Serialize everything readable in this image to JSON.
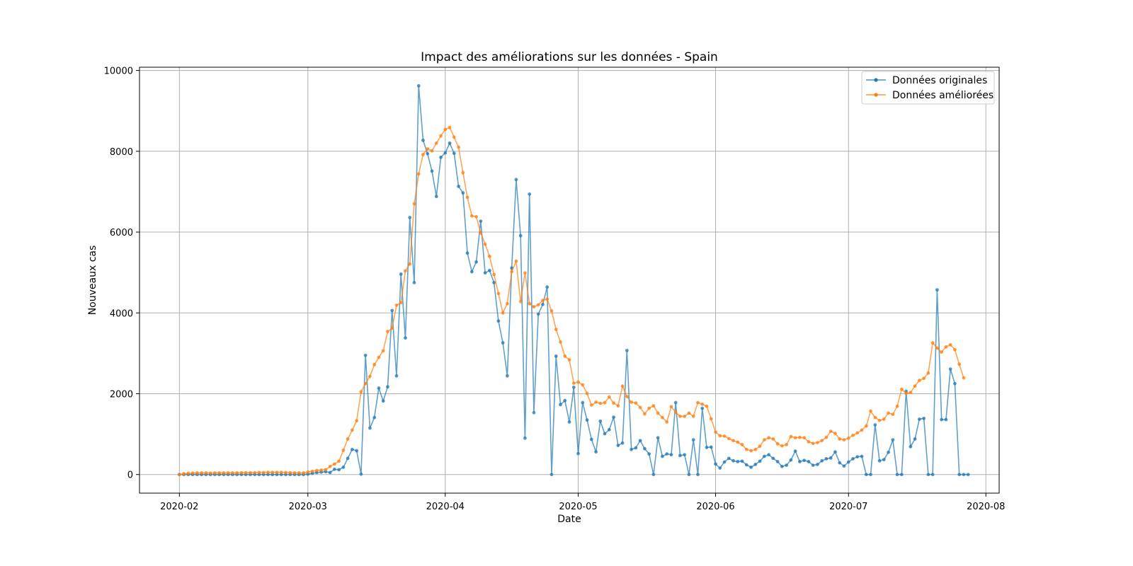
{
  "chart_data": {
    "type": "line",
    "title": "Impact des améliorations sur les données - Spain",
    "xlabel": "Date",
    "ylabel": "Nouveaux cas",
    "x_start": "2020-02-01",
    "xlim": [
      "2020-01-23",
      "2020-08-04"
    ],
    "ylim": [
      -460,
      10080
    ],
    "x_ticks": [
      "2020-02-01",
      "2020-03-01",
      "2020-04-01",
      "2020-05-01",
      "2020-06-01",
      "2020-07-01",
      "2020-08-01"
    ],
    "x_tick_labels": [
      "2020-02",
      "2020-03",
      "2020-04",
      "2020-05",
      "2020-06",
      "2020-07",
      "2020-08"
    ],
    "y_ticks": [
      0,
      2000,
      4000,
      6000,
      8000,
      10000
    ],
    "y_tick_labels": [
      "0",
      "2000",
      "4000",
      "6000",
      "8000",
      "10000"
    ],
    "grid": true,
    "legend_position": "top-right",
    "colors": {
      "original": "#1f77b4",
      "improved": "#ff7f0e"
    },
    "series": [
      {
        "name": "Données originales",
        "values": [
          0,
          0,
          0,
          0,
          0,
          0,
          0,
          0,
          0,
          0,
          0,
          0,
          0,
          0,
          0,
          0,
          0,
          0,
          0,
          0,
          0,
          0,
          0,
          0,
          0,
          0,
          0,
          0,
          0,
          10,
          30,
          50,
          60,
          70,
          50,
          130,
          120,
          180,
          400,
          620,
          590,
          10,
          2950,
          1150,
          1410,
          2140,
          1820,
          2170,
          4060,
          2440,
          4960,
          3380,
          6360,
          4750,
          9620,
          8270,
          7940,
          7510,
          6880,
          7850,
          7960,
          8200,
          7950,
          7130,
          6970,
          5480,
          5020,
          5260,
          6270,
          4990,
          5050,
          4750,
          3800,
          3260,
          2440,
          5110,
          7300,
          5910,
          900,
          6940,
          1530,
          3970,
          4210,
          4640,
          0,
          2930,
          1730,
          1830,
          1300,
          2160,
          520,
          1780,
          1350,
          870,
          560,
          1320,
          1010,
          1110,
          1420,
          720,
          780,
          3070,
          620,
          660,
          840,
          640,
          510,
          0,
          910,
          450,
          510,
          490,
          1780,
          470,
          490,
          0,
          860,
          0,
          1640,
          670,
          680,
          260,
          160,
          310,
          400,
          340,
          320,
          330,
          240,
          180,
          250,
          330,
          450,
          490,
          400,
          320,
          200,
          230,
          360,
          580,
          320,
          350,
          320,
          230,
          250,
          340,
          390,
          410,
          560,
          290,
          210,
          310,
          390,
          440,
          450,
          0,
          0,
          1230,
          340,
          370,
          550,
          860,
          0,
          0,
          2060,
          690,
          880,
          1370,
          1390,
          0,
          0,
          4570,
          1360,
          1360,
          2610,
          2250,
          0,
          0,
          0
        ]
      },
      {
        "name": "Données améliorées",
        "values": [
          0,
          20,
          30,
          35,
          40,
          40,
          40,
          35,
          40,
          40,
          40,
          40,
          40,
          40,
          45,
          45,
          45,
          45,
          50,
          50,
          55,
          55,
          55,
          55,
          50,
          45,
          40,
          40,
          40,
          60,
          80,
          100,
          110,
          120,
          200,
          260,
          330,
          600,
          880,
          1100,
          1330,
          2050,
          2250,
          2430,
          2720,
          2900,
          3060,
          3540,
          3620,
          4190,
          4250,
          5040,
          5210,
          6700,
          7440,
          7920,
          8060,
          8010,
          8200,
          8380,
          8540,
          8590,
          8350,
          8100,
          7470,
          6860,
          6400,
          6380,
          5980,
          5700,
          5400,
          4950,
          4480,
          4000,
          4230,
          5020,
          5280,
          4280,
          4990,
          4230,
          4150,
          4200,
          4310,
          4340,
          4050,
          3590,
          3280,
          2930,
          2840,
          2260,
          2290,
          2220,
          2010,
          1720,
          1790,
          1760,
          1780,
          1920,
          1770,
          1700,
          2190,
          1930,
          1790,
          1770,
          1660,
          1500,
          1640,
          1700,
          1520,
          1410,
          1300,
          1680,
          1540,
          1440,
          1440,
          1520,
          1440,
          1780,
          1740,
          1690,
          1380,
          1050,
          960,
          950,
          890,
          840,
          800,
          740,
          620,
          590,
          620,
          700,
          860,
          910,
          880,
          760,
          710,
          740,
          940,
          910,
          920,
          910,
          810,
          770,
          790,
          840,
          920,
          1070,
          1020,
          880,
          860,
          900,
          970,
          1030,
          1100,
          1200,
          1570,
          1410,
          1340,
          1370,
          1520,
          1490,
          1690,
          2110,
          2010,
          2030,
          2190,
          2330,
          2380,
          2510,
          3260,
          3130,
          3030,
          3160,
          3210,
          3090,
          2730,
          2390
        ]
      }
    ]
  }
}
